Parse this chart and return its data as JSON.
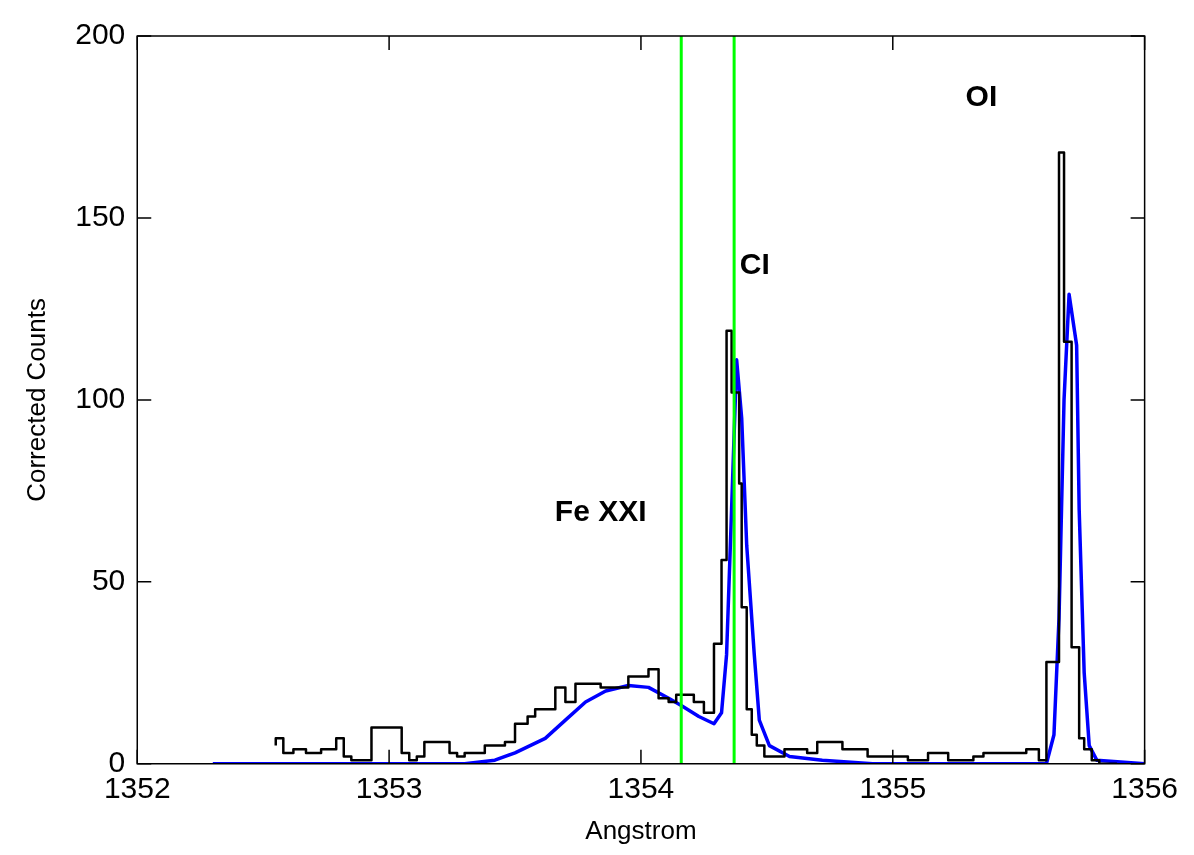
{
  "chart_data": {
    "type": "step",
    "xlabel": "Angstrom",
    "ylabel": "Corrected Counts",
    "xlim": [
      1352,
      1356
    ],
    "xticks": [
      1352,
      1353,
      1354,
      1355,
      1356
    ],
    "ylim": [
      0,
      200
    ],
    "yticks": [
      0,
      50,
      100,
      150,
      200
    ],
    "grid": false,
    "legend": false,
    "series": [
      {
        "color": "#000000",
        "x": [
          1352.55,
          1352.58,
          1352.62,
          1352.67,
          1352.73,
          1352.79,
          1352.82,
          1352.85,
          1352.93,
          1353.05,
          1353.08,
          1353.11,
          1353.14,
          1353.24,
          1353.27,
          1353.3,
          1353.38,
          1353.46,
          1353.5,
          1353.55,
          1353.58,
          1353.66,
          1353.7,
          1353.74,
          1353.77,
          1353.84,
          1353.95,
          1354.03,
          1354.07,
          1354.11,
          1354.14,
          1354.21,
          1354.25,
          1354.29,
          1354.32,
          1354.34,
          1354.36,
          1354.39,
          1354.4,
          1354.42,
          1354.44,
          1354.46,
          1354.49,
          1354.57,
          1354.66,
          1354.7,
          1354.8,
          1354.84,
          1354.9,
          1355.0,
          1355.06,
          1355.14,
          1355.22,
          1355.32,
          1355.36,
          1355.53,
          1355.58,
          1355.61,
          1355.66,
          1355.68,
          1355.71,
          1355.74,
          1355.76,
          1355.79,
          1355.82,
          1355.89
        ],
        "values": [
          5,
          7,
          3,
          4,
          3,
          4,
          7,
          2,
          1,
          10,
          3,
          1,
          2,
          6,
          3,
          2,
          3,
          5,
          6,
          11,
          13,
          15,
          21,
          17,
          22,
          22,
          21,
          24,
          26,
          18,
          17,
          19,
          17,
          14,
          33,
          56,
          119,
          102,
          77,
          43,
          15,
          8,
          5,
          2,
          4,
          3,
          6,
          4,
          4,
          2,
          2,
          1,
          3,
          1,
          2,
          3,
          4,
          1,
          28,
          168,
          116,
          32,
          7,
          4,
          1,
          0
        ]
      },
      {
        "type": "line",
        "color": "#0000ff",
        "x": [
          1352.3,
          1353.3,
          1353.42,
          1353.5,
          1353.62,
          1353.7,
          1353.78,
          1353.86,
          1353.95,
          1354.03,
          1354.11,
          1354.16,
          1354.23,
          1354.29,
          1354.32,
          1354.34,
          1354.36,
          1354.38,
          1354.4,
          1354.42,
          1354.45,
          1354.47,
          1354.51,
          1354.59,
          1354.72,
          1354.92,
          1355.61,
          1355.64,
          1355.66,
          1355.68,
          1355.7,
          1355.73,
          1355.74,
          1355.76,
          1355.78,
          1355.81,
          1356.0
        ],
        "values": [
          0,
          0,
          1,
          3,
          7,
          12,
          17,
          20,
          21.5,
          21,
          18,
          16,
          13,
          11,
          14,
          30,
          70,
          111,
          95,
          60,
          30,
          12,
          5,
          2,
          1,
          0,
          0,
          8,
          40,
          100,
          129,
          115,
          70,
          25,
          5,
          1,
          0
        ]
      }
    ],
    "ref_lines": [
      {
        "axis": "x",
        "value": 1354.16,
        "color": "#00ff00"
      },
      {
        "axis": "x",
        "value": 1354.37,
        "color": "#00ff00"
      }
    ],
    "annotations": [
      "Fe XXI",
      "CI",
      "OI"
    ]
  }
}
